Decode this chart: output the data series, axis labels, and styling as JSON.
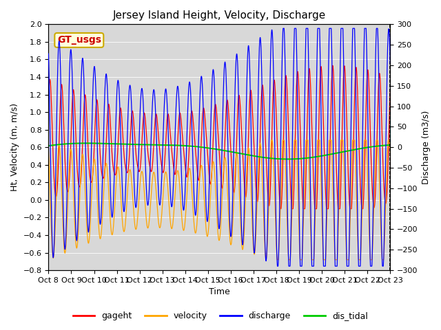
{
  "title": "Jersey Island Height, Velocity, Discharge",
  "xlabel": "Time",
  "ylabel_left": "Ht, Velocity (m, m/s)",
  "ylabel_right": "Discharge (m3/s)",
  "ylim_left": [
    -0.8,
    2.0
  ],
  "ylim_right": [
    -300,
    300
  ],
  "n_points": 3000,
  "xtick_labels": [
    "Oct 8",
    "Oct 9",
    "Oct 10",
    "Oct 11",
    "Oct 12",
    "Oct 13",
    "Oct 14",
    "Oct 15",
    "Oct 16",
    "Oct 17",
    "Oct 18",
    "Oct 19",
    "Oct 20",
    "Oct 21",
    "Oct 22",
    "Oct 23"
  ],
  "colors": {
    "gageht": "#ff0000",
    "velocity": "#ffa500",
    "discharge": "#0000ff",
    "dis_tidal": "#00cc00"
  },
  "legend_labels": [
    "gageht",
    "velocity",
    "discharge",
    "dis_tidal"
  ],
  "gt_usgs_label": "GT_usgs",
  "gt_usgs_color": "#cc0000",
  "gt_usgs_bg": "#ffffdd",
  "background_color": "#d8d8d8",
  "title_fontsize": 11,
  "axis_fontsize": 9,
  "tick_fontsize": 8,
  "legend_fontsize": 9
}
